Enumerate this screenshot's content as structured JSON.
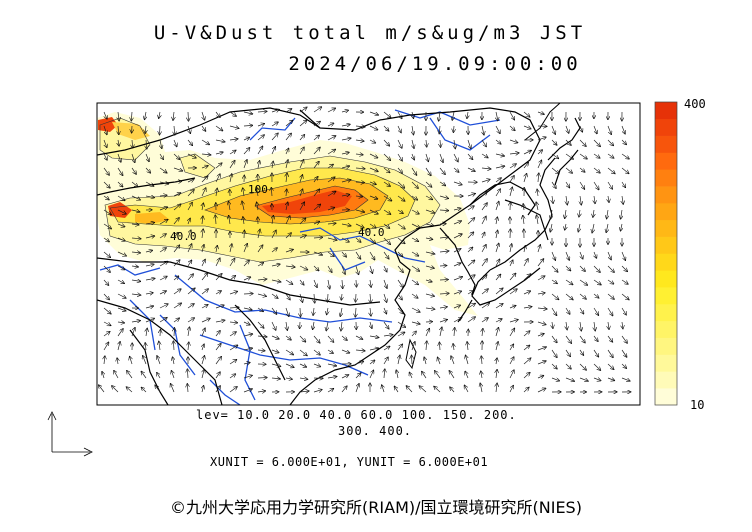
{
  "title": {
    "line1": "U-V&Dust total m/s&ug/m3 JST",
    "line2": "2024/06/19.09:00:00"
  },
  "colorbar": {
    "max_label": "400",
    "min_label": "10",
    "colors": [
      "#fffdd8",
      "#fffbb8",
      "#fff99a",
      "#fff680",
      "#fff466",
      "#fff24c",
      "#fff032",
      "#ffe81e",
      "#ffd81a",
      "#ffc818",
      "#ffb816",
      "#ffa614",
      "#ff9412",
      "#ff8010",
      "#ff6a0e",
      "#f7550c",
      "#f0440a",
      "#e63208"
    ]
  },
  "contour_labels": [
    "100",
    "40.0",
    "40.0"
  ],
  "levels": {
    "line1": "lev= 10.0 20.0 40.0 60.0 100. 150. 200.",
    "line2": "300. 400."
  },
  "units": "XUNIT = 6.000E+01, YUNIT = 6.000E+01",
  "copyright": "©九州大学応用力学研究所(RIAM)/国立環境研究所(NIES)",
  "colors": {
    "coast": "#000000",
    "river": "#1f4fd8",
    "frame": "#000000"
  }
}
